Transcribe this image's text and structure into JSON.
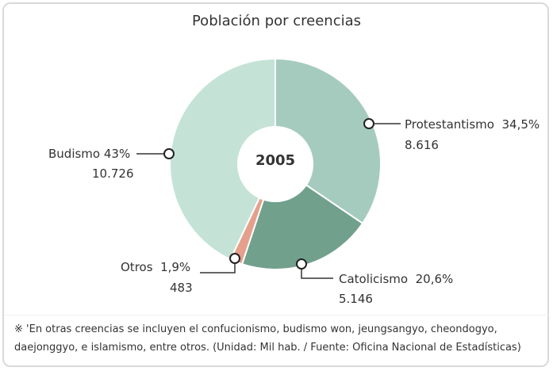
{
  "colors": {
    "Protestantismo": "#a5cbbf",
    "Catolicismo": "#71a08c",
    "Otros": "#e4a08c",
    "Budismo": "#c4e3d6",
    "center": "#ffffff"
  },
  "chart_data": {
    "type": "pie",
    "title": "Población por creencias",
    "center_label": "2005",
    "slices": [
      {
        "name": "Protestantismo",
        "percent": 34.5,
        "percent_label": "34,5%",
        "value": 8616,
        "value_label": "8.616"
      },
      {
        "name": "Catolicismo",
        "percent": 20.6,
        "percent_label": "20,6%",
        "value": 5146,
        "value_label": "5.146"
      },
      {
        "name": "Otros",
        "percent": 1.9,
        "percent_label": "1,9%",
        "value": 483,
        "value_label": "483"
      },
      {
        "name": "Budismo",
        "percent": 43,
        "percent_label": "43%",
        "value": 10726,
        "value_label": "10.726"
      }
    ],
    "unit": "Mil hab."
  },
  "note": "※ 'En otras creencias se incluyen el confucionismo, budismo won, jeungsangyo, cheondogyo, daejonggyo, e islamismo, entre otros. (Unidad: Mil hab. / Fuente: Oficina Nacional de Estadísticas)"
}
